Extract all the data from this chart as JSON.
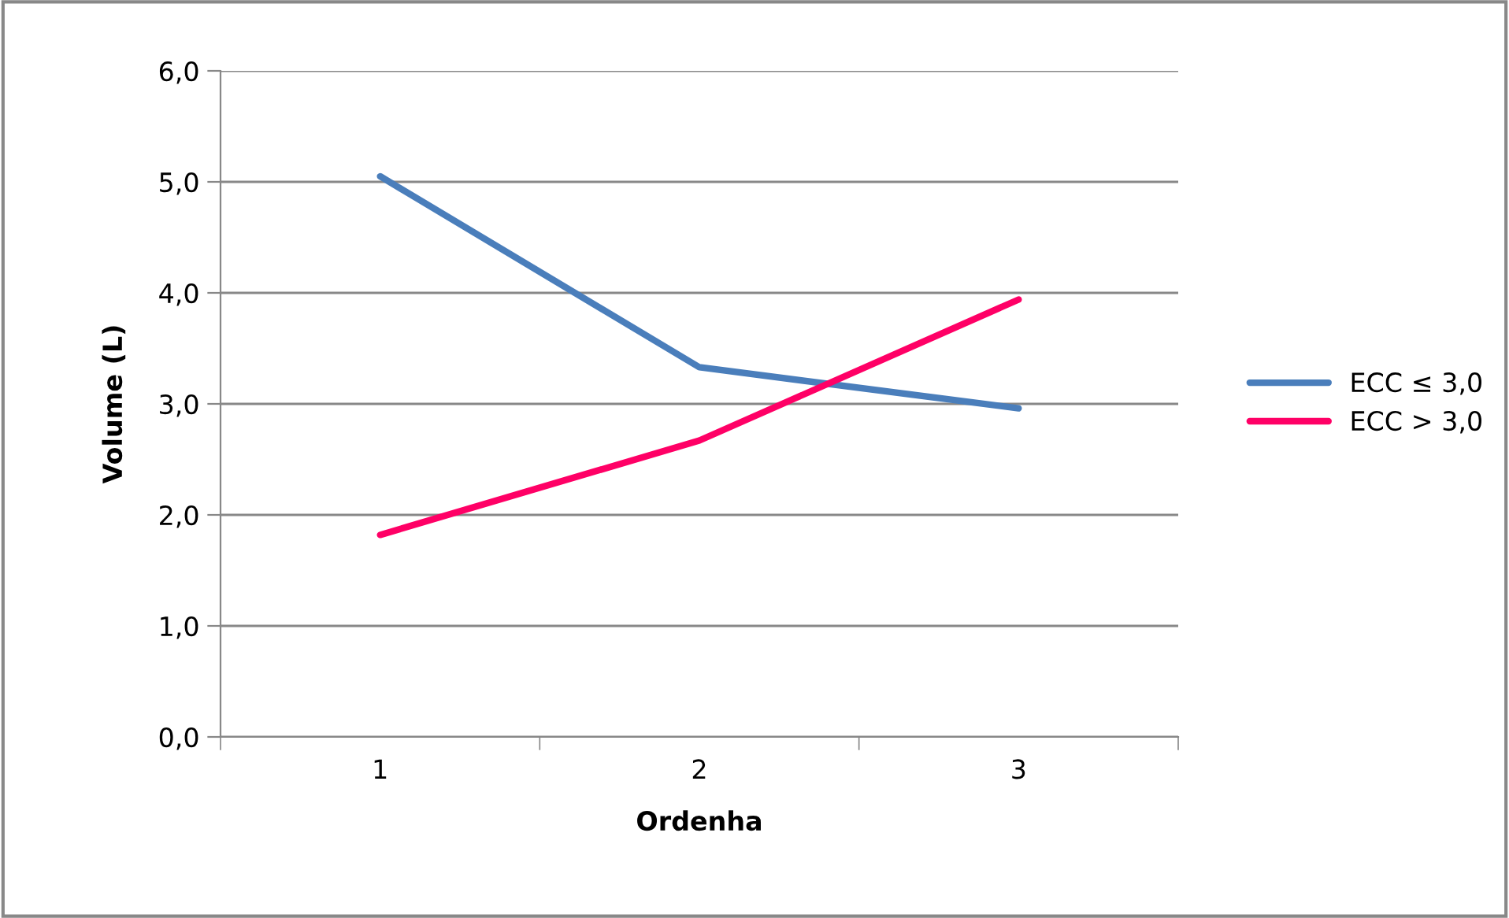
{
  "chart_data": {
    "type": "line",
    "xlabel": "Ordenha",
    "ylabel": "Volume (L)",
    "categories": [
      "1",
      "2",
      "3"
    ],
    "series": [
      {
        "name": "ECC ≤ 3,0",
        "color": "#4a7ebb",
        "values": [
          5.05,
          3.33,
          2.96
        ]
      },
      {
        "name": "ECC > 3,0",
        "color": "#ff0066",
        "values": [
          1.82,
          2.67,
          3.94
        ]
      }
    ],
    "ylim": [
      0,
      6
    ],
    "yticks": [
      {
        "value": 0,
        "label": "0,0"
      },
      {
        "value": 1,
        "label": "1,0"
      },
      {
        "value": 2,
        "label": "2,0"
      },
      {
        "value": 3,
        "label": "3,0"
      },
      {
        "value": 4,
        "label": "4,0"
      },
      {
        "value": 5,
        "label": "5,0"
      },
      {
        "value": 6,
        "label": "6,0"
      }
    ],
    "grid": "y",
    "legend": "right",
    "marker": "none",
    "line_style": "solid"
  }
}
